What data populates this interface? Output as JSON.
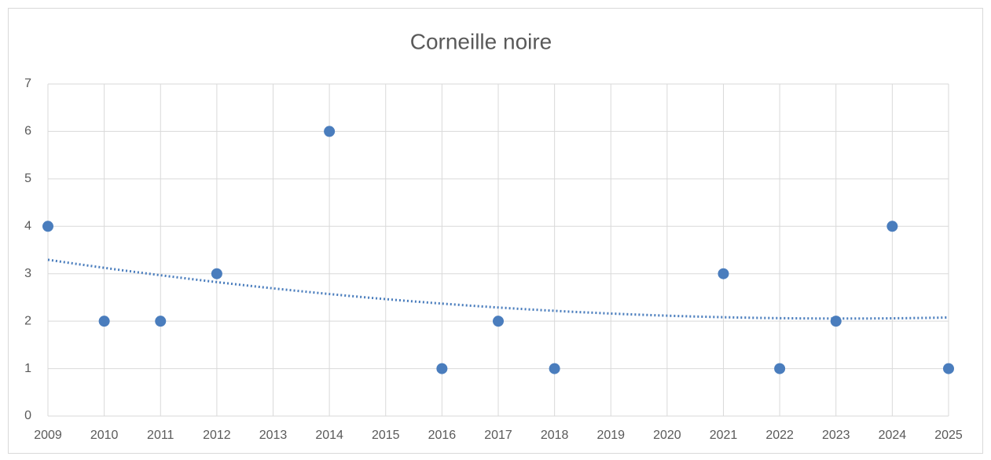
{
  "chart_data": {
    "type": "scatter",
    "title": "Corneille noire",
    "x": [
      2009,
      2010,
      2011,
      2012,
      2014,
      2016,
      2017,
      2018,
      2021,
      2022,
      2023,
      2024,
      2025
    ],
    "values": [
      4,
      2,
      2,
      3,
      6,
      1,
      2,
      1,
      3,
      1,
      2,
      4,
      1
    ],
    "color": "#4a7dbd",
    "xlim": [
      2009,
      2025
    ],
    "xticks": [
      2009,
      2010,
      2011,
      2012,
      2013,
      2014,
      2015,
      2016,
      2017,
      2018,
      2019,
      2020,
      2021,
      2022,
      2023,
      2024,
      2025
    ],
    "ylim": [
      0,
      7
    ],
    "yticks": [
      0,
      1,
      2,
      3,
      4,
      5,
      6,
      7
    ],
    "grid": true,
    "trendline": {
      "kind": "polynomial",
      "order": 2
    }
  }
}
